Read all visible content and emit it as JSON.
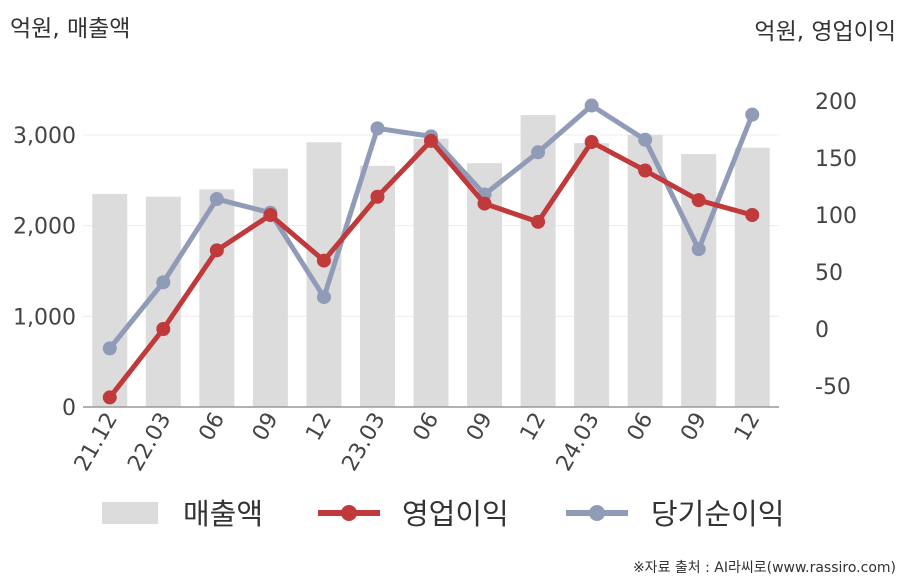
{
  "chart_data": {
    "type": "bar+line",
    "categories": [
      "21.12",
      "22.03",
      "06",
      "09",
      "12",
      "23.03",
      "06",
      "09",
      "12",
      "24.03",
      "06",
      "09",
      "12"
    ],
    "left_axis": {
      "label": "억원, 매출액",
      "ticks": [
        "0",
        "1,000",
        "2,000",
        "3,000"
      ],
      "tick_values": [
        0,
        1000,
        2000,
        3000
      ],
      "ylim": [
        0,
        3800
      ]
    },
    "right_axis": {
      "label": "억원, 영업이익",
      "ticks": [
        "-50",
        "0",
        "50",
        "100",
        "150",
        "200"
      ],
      "tick_values": [
        -50,
        0,
        50,
        100,
        150,
        200
      ],
      "ylim": [
        -70,
        263
      ]
    },
    "series": [
      {
        "name": "매출액",
        "kind": "bar",
        "axis": "left",
        "color": "#dcdcdc",
        "values": [
          2350,
          2320,
          2400,
          2630,
          2920,
          2660,
          2960,
          2690,
          3220,
          2910,
          3000,
          2790,
          2860
        ]
      },
      {
        "name": "영업이익",
        "kind": "line",
        "axis": "right",
        "color": "#c0393b",
        "values": [
          -60,
          0,
          69,
          100,
          60,
          116,
          165,
          110,
          94,
          164,
          139,
          113,
          100
        ]
      },
      {
        "name": "당기순이익",
        "kind": "line",
        "axis": "right",
        "color": "#909bb8",
        "values": [
          -17,
          41,
          114,
          102,
          28,
          176,
          169,
          118,
          155,
          196,
          166,
          70,
          188
        ]
      }
    ],
    "grid": true,
    "legend_position": "bottom"
  },
  "source_note": "※자료 출처 : AI라씨로(www.rassiro.com)"
}
